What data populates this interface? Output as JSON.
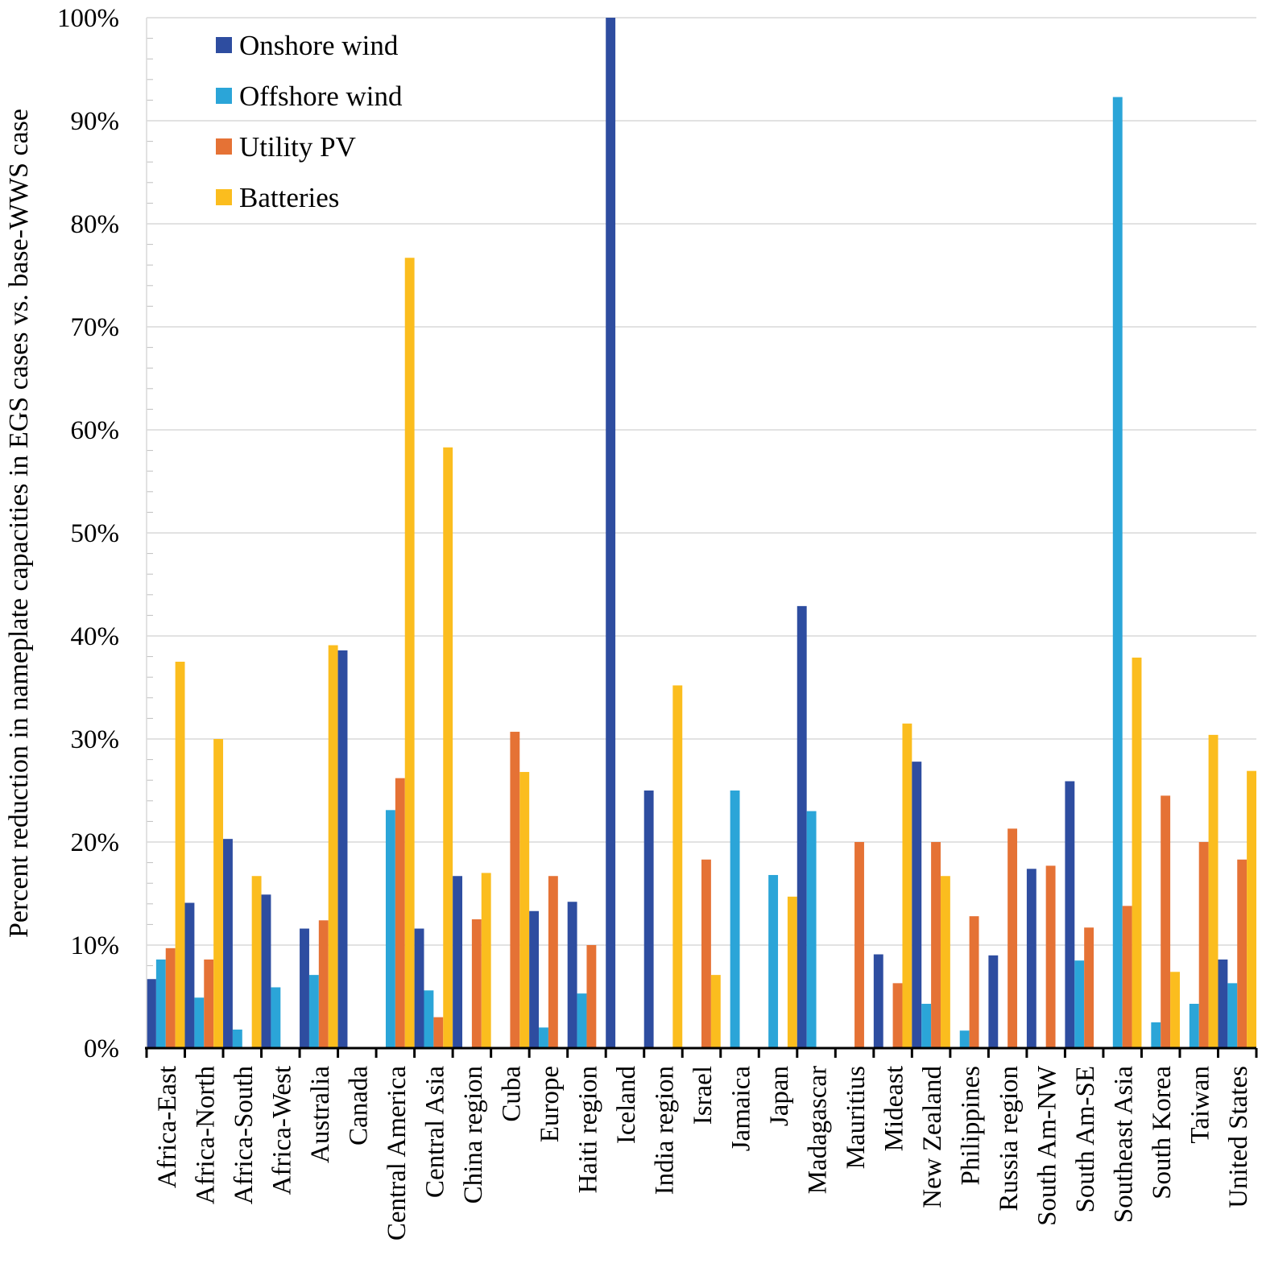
{
  "chart_data": {
    "type": "bar",
    "title": "",
    "xlabel": "",
    "ylabel": "Percent reduction in nameplate capacities in EGS cases vs. base-WWS case",
    "ylim": [
      0,
      100
    ],
    "yticks": [
      "0%",
      "10%",
      "20%",
      "30%",
      "40%",
      "50%",
      "60%",
      "70%",
      "80%",
      "90%",
      "100%"
    ],
    "legend_position": "top-left",
    "grid": true,
    "categories": [
      "Africa-East",
      "Africa-North",
      "Africa-South",
      "Africa-West",
      "Australia",
      "Canada",
      "Central America",
      "Central Asia",
      "China region",
      "Cuba",
      "Europe",
      "Haiti region",
      "Iceland",
      "India region",
      "Israel",
      "Jamaica",
      "Japan",
      "Madagascar",
      "Mauritius",
      "Mideast",
      "New Zealand",
      "Philippines",
      "Russia region",
      "South Am-NW",
      "South Am-SE",
      "Southeast Asia",
      "South Korea",
      "Taiwan",
      "United States"
    ],
    "series": [
      {
        "name": "Onshore wind",
        "color": "#2e4da0",
        "values": [
          6.7,
          14.1,
          20.3,
          14.9,
          11.6,
          38.6,
          0,
          11.6,
          16.7,
          0,
          13.3,
          14.2,
          100,
          25.0,
          0,
          0,
          0,
          42.9,
          0,
          9.1,
          27.8,
          0,
          9.0,
          17.4,
          25.9,
          0,
          0,
          0,
          8.6
        ]
      },
      {
        "name": "Offshore wind",
        "color": "#2ba5d8",
        "values": [
          8.6,
          4.9,
          1.8,
          5.9,
          7.1,
          0,
          23.1,
          5.6,
          0,
          0,
          2.0,
          5.3,
          0,
          0,
          0,
          25.0,
          16.8,
          23.0,
          0,
          0,
          4.3,
          1.7,
          0,
          0,
          8.5,
          92.3,
          2.5,
          4.3,
          6.3
        ]
      },
      {
        "name": "Utility PV",
        "color": "#e57235",
        "values": [
          9.7,
          8.6,
          0,
          0,
          12.4,
          0,
          26.2,
          3.0,
          12.5,
          30.7,
          16.7,
          10.0,
          0,
          0,
          18.3,
          0,
          0,
          0,
          20.0,
          6.3,
          20.0,
          12.8,
          21.3,
          17.7,
          11.7,
          13.8,
          24.5,
          20.0,
          18.3
        ]
      },
      {
        "name": "Batteries",
        "color": "#fbbd1e",
        "values": [
          37.5,
          30.0,
          16.7,
          0,
          39.1,
          0,
          76.7,
          58.3,
          17.0,
          26.8,
          0,
          0,
          0,
          35.2,
          7.1,
          0,
          14.7,
          0,
          0,
          31.5,
          16.7,
          0,
          0,
          0,
          0,
          37.9,
          7.4,
          30.4,
          26.9
        ]
      }
    ]
  }
}
